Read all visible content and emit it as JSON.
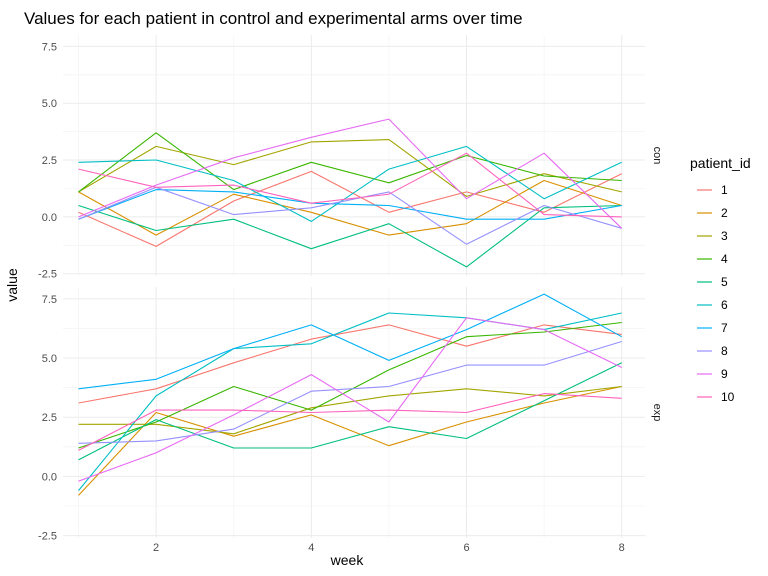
{
  "chart_data": {
    "type": "line",
    "title": "Values for each patient in control and experimental arms over time",
    "xlabel": "week",
    "ylabel": "value",
    "x": [
      1,
      2,
      3,
      4,
      5,
      6,
      7,
      8
    ],
    "xlim": [
      0.8,
      8.3
    ],
    "ylim": [
      -2.6,
      8.0
    ],
    "x_ticks": [
      2,
      4,
      6,
      8
    ],
    "y_ticks": [
      -2.5,
      0.0,
      2.5,
      5.0,
      7.5
    ],
    "x_tick_labels": [
      "2",
      "4",
      "6",
      "8"
    ],
    "y_tick_labels": [
      "-2.5",
      "0.0",
      "2.5",
      "5.0",
      "7.5"
    ],
    "grid": true,
    "legend": {
      "title": "patient_id",
      "position": "right",
      "entries": [
        "1",
        "2",
        "3",
        "4",
        "5",
        "6",
        "7",
        "8",
        "9",
        "10"
      ]
    },
    "colors": [
      "#F8766D",
      "#D89000",
      "#A3A500",
      "#39B600",
      "#00BF7D",
      "#00BFC4",
      "#00B0F6",
      "#9590FF",
      "#E76BF3",
      "#FF62BC"
    ],
    "panels": [
      {
        "strip": "con",
        "series": [
          {
            "name": "1",
            "values": [
              0.2,
              -1.3,
              0.7,
              2.0,
              0.2,
              1.1,
              0.2,
              1.9
            ]
          },
          {
            "name": "2",
            "values": [
              1.1,
              -0.8,
              1.0,
              0.2,
              -0.8,
              -0.3,
              1.6,
              0.5
            ]
          },
          {
            "name": "3",
            "values": [
              1.1,
              3.1,
              2.3,
              3.3,
              3.4,
              0.9,
              1.9,
              1.1
            ]
          },
          {
            "name": "4",
            "values": [
              1.1,
              3.7,
              1.2,
              2.4,
              1.5,
              2.7,
              1.8,
              1.6
            ]
          },
          {
            "name": "5",
            "values": [
              0.5,
              -0.6,
              -0.1,
              -1.4,
              -0.3,
              -2.2,
              0.4,
              0.5
            ]
          },
          {
            "name": "6",
            "values": [
              2.4,
              2.5,
              1.6,
              -0.2,
              2.1,
              3.1,
              0.8,
              2.4
            ]
          },
          {
            "name": "7",
            "values": [
              -0.1,
              1.2,
              1.1,
              0.6,
              0.5,
              -0.1,
              -0.1,
              0.5
            ]
          },
          {
            "name": "8",
            "values": [
              -0.1,
              1.3,
              0.1,
              0.4,
              1.1,
              -1.2,
              0.5,
              -0.5
            ]
          },
          {
            "name": "9",
            "values": [
              0.0,
              1.4,
              2.6,
              3.5,
              4.3,
              0.8,
              2.8,
              -0.5
            ]
          },
          {
            "name": "10",
            "values": [
              2.1,
              1.3,
              1.4,
              0.6,
              1.0,
              2.8,
              0.1,
              0.0
            ]
          }
        ]
      },
      {
        "strip": "exp",
        "series": [
          {
            "name": "1",
            "values": [
              3.1,
              3.7,
              4.8,
              5.8,
              6.4,
              5.5,
              6.4,
              6.0
            ]
          },
          {
            "name": "2",
            "values": [
              -0.8,
              2.7,
              1.7,
              2.6,
              1.3,
              2.3,
              3.1,
              3.8
            ]
          },
          {
            "name": "3",
            "values": [
              2.2,
              2.2,
              1.8,
              2.9,
              3.4,
              3.7,
              3.4,
              3.8
            ]
          },
          {
            "name": "4",
            "values": [
              1.2,
              2.3,
              3.8,
              2.8,
              4.5,
              5.9,
              6.1,
              6.5
            ]
          },
          {
            "name": "5",
            "values": [
              0.7,
              2.4,
              1.2,
              1.2,
              2.1,
              1.6,
              3.2,
              4.8
            ]
          },
          {
            "name": "6",
            "values": [
              -0.6,
              3.4,
              5.4,
              5.6,
              6.9,
              6.7,
              6.2,
              6.9
            ]
          },
          {
            "name": "7",
            "values": [
              3.7,
              4.1,
              5.4,
              6.4,
              4.9,
              6.2,
              7.7,
              5.9
            ]
          },
          {
            "name": "8",
            "values": [
              1.4,
              1.5,
              2.0,
              3.6,
              3.8,
              4.7,
              4.7,
              5.7
            ]
          },
          {
            "name": "9",
            "values": [
              -0.2,
              1.0,
              2.6,
              4.3,
              2.3,
              6.7,
              6.2,
              4.6
            ]
          },
          {
            "name": "10",
            "values": [
              1.1,
              2.8,
              2.8,
              2.7,
              2.8,
              2.7,
              3.5,
              3.3
            ]
          }
        ]
      }
    ]
  }
}
